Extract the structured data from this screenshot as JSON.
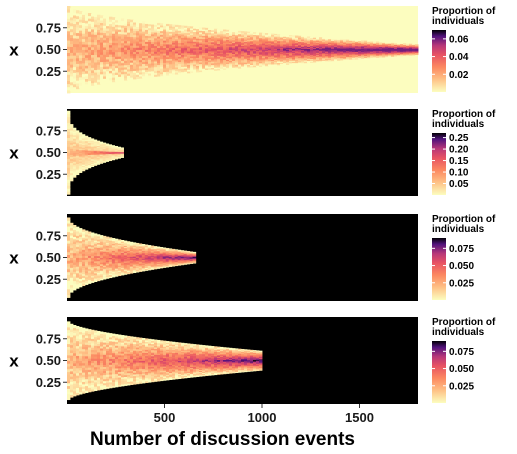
{
  "chart_data": [
    {
      "type": "heatmap",
      "ylabel": "x",
      "xlim": [
        0,
        1800
      ],
      "ylim": [
        0,
        1
      ],
      "yticks": [
        "0.25",
        "0.50",
        "0.75"
      ],
      "extent_events": 1800,
      "legend": {
        "title_line1": "Proportion of",
        "title_line2": "individuals",
        "ticks": [
          "0.06",
          "0.04",
          "0.02"
        ],
        "tick_values": [
          0.06,
          0.04,
          0.02
        ],
        "range": [
          0,
          0.07
        ]
      }
    },
    {
      "type": "heatmap",
      "ylabel": "x",
      "xlim": [
        0,
        1800
      ],
      "ylim": [
        0,
        1
      ],
      "yticks": [
        "0.25",
        "0.50",
        "0.75"
      ],
      "extent_events": 290,
      "legend": {
        "title_line1": "Proportion of",
        "title_line2": "individuals",
        "ticks": [
          "0.25",
          "0.20",
          "0.15",
          "0.10",
          "0.05"
        ],
        "tick_values": [
          0.25,
          0.2,
          0.15,
          0.1,
          0.05
        ],
        "range": [
          0,
          0.27
        ]
      }
    },
    {
      "type": "heatmap",
      "ylabel": "x",
      "xlim": [
        0,
        1800
      ],
      "ylim": [
        0,
        1
      ],
      "yticks": [
        "0.25",
        "0.50",
        "0.75"
      ],
      "extent_events": 660,
      "legend": {
        "title_line1": "Proportion of",
        "title_line2": "individuals",
        "ticks": [
          "0.075",
          "0.050",
          "0.025"
        ],
        "tick_values": [
          0.075,
          0.05,
          0.025
        ],
        "range": [
          0,
          0.09
        ]
      }
    },
    {
      "type": "heatmap",
      "ylabel": "x",
      "xlim": [
        0,
        1800
      ],
      "ylim": [
        0,
        1
      ],
      "yticks": [
        "0.25",
        "0.50",
        "0.75"
      ],
      "extent_events": 1000,
      "xticks": [
        "500",
        "1000",
        "1500"
      ],
      "xtick_values": [
        500,
        1000,
        1500
      ],
      "xlabel": "Number of discussion events",
      "legend": {
        "title_line1": "Proportion of",
        "title_line2": "individuals",
        "ticks": [
          "0.075",
          "0.050",
          "0.025"
        ],
        "tick_values": [
          0.075,
          0.05,
          0.025
        ],
        "range": [
          0,
          0.09
        ]
      }
    }
  ],
  "colors": {
    "background": "#000000",
    "low": "#fcfdbf",
    "mid": "#fc8961",
    "high": "#b73779",
    "top": "#000004"
  }
}
